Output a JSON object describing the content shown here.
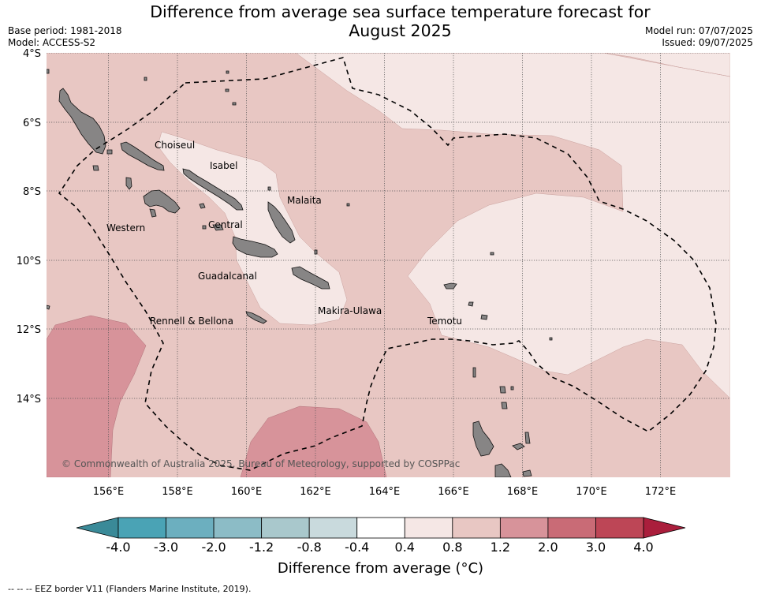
{
  "title_line1": "Difference from average sea surface temperature forecast for",
  "title_line2": "August 2025",
  "base_period": "Base period: 1981-2018",
  "model": "Model: ACCESS-S2",
  "model_run": "Model run: 07/07/2025",
  "issued": "Issued: 09/07/2025",
  "copyright": "© Commonwealth of Australia 2025, Bureau of Meteorology, supported by COSPPac",
  "lat_labels": [
    "4°S",
    "6°S",
    "8°S",
    "10°S",
    "12°S",
    "14°S"
  ],
  "lon_labels": [
    "156°E",
    "158°E",
    "160°E",
    "162°E",
    "164°E",
    "166°E",
    "168°E",
    "170°E",
    "172°E"
  ],
  "provinces": [
    "Choiseul",
    "Isabel",
    "Malaita",
    "Western",
    "Central",
    "Guadalcanal",
    "Makira-Ulawa",
    "Rennell & Bellona",
    "Temotu"
  ],
  "colorbar": {
    "ticks": [
      "-4.0",
      "-3.0",
      "-2.0",
      "-1.2",
      "-0.8",
      "-0.4",
      "0.4",
      "0.8",
      "1.2",
      "2.0",
      "3.0",
      "4.0"
    ],
    "colors": [
      "#4aa3b5",
      "#6cafbf",
      "#8cbcc6",
      "#a9c8cc",
      "#c9dadd",
      "#ffffff",
      "#f5e7e5",
      "#e8c7c3",
      "#d7939a",
      "#c96b76",
      "#bd4656"
    ],
    "under_color": "#3a8a98",
    "over_color": "#aa1e3c",
    "label": "Difference from average (°C)"
  },
  "legend_note": "--  --  -- EEZ border V11 (Flanders Marine Institute, 2019)."
}
